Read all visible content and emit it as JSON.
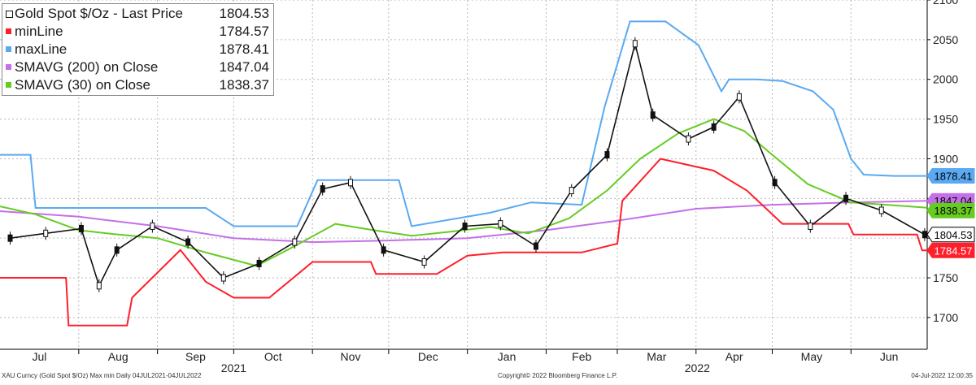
{
  "chart_data": {
    "type": "line",
    "title": "",
    "ylim": [
      1660,
      2100
    ],
    "y_ticks": [
      "1700",
      "1750",
      "1800",
      "1850",
      "1900",
      "1950",
      "2000",
      "2050",
      "2100"
    ],
    "x_months": [
      "Jul",
      "Aug",
      "Sep",
      "Oct",
      "Nov",
      "Dec",
      "Jan",
      "Feb",
      "Mar",
      "Apr",
      "May",
      "Jun"
    ],
    "x_years": [
      "2021",
      "2022"
    ],
    "grid": true,
    "legend_position": "top-left",
    "series": [
      {
        "name": "Gold Spot $/Oz - Last Price",
        "last": "1804.53",
        "color": "#111111",
        "style": "candlestick",
        "x": [
          "2021-07-05",
          "2021-07-19",
          "2021-08-02",
          "2021-08-09",
          "2021-08-16",
          "2021-08-30",
          "2021-09-13",
          "2021-09-27",
          "2021-10-11",
          "2021-10-25",
          "2021-11-05",
          "2021-11-16",
          "2021-11-29",
          "2021-12-15",
          "2021-12-31",
          "2022-01-14",
          "2022-01-28",
          "2022-02-11",
          "2022-02-25",
          "2022-03-08",
          "2022-03-15",
          "2022-03-29",
          "2022-04-08",
          "2022-04-18",
          "2022-05-02",
          "2022-05-16",
          "2022-05-30",
          "2022-06-13",
          "2022-06-30"
        ],
        "y": [
          1800,
          1806,
          1812,
          1740,
          1785,
          1815,
          1795,
          1750,
          1768,
          1795,
          1862,
          1870,
          1785,
          1770,
          1815,
          1818,
          1790,
          1860,
          1905,
          2045,
          1955,
          1925,
          1940,
          1978,
          1870,
          1815,
          1850,
          1835,
          1804.53
        ]
      },
      {
        "name": "minLine",
        "last": "1784.57",
        "color": "#ff1f2a",
        "x": [
          "2021-07-01",
          "2021-07-27",
          "2021-07-28",
          "2021-08-20",
          "2021-08-22",
          "2021-09-10",
          "2021-09-20",
          "2021-10-01",
          "2021-10-15",
          "2021-11-01",
          "2021-11-24",
          "2021-11-26",
          "2021-12-20",
          "2022-01-01",
          "2022-01-15",
          "2022-02-15",
          "2022-03-01",
          "2022-03-03",
          "2022-03-18",
          "2022-04-08",
          "2022-04-21",
          "2022-05-05",
          "2022-05-31",
          "2022-06-02",
          "2022-06-27",
          "2022-06-29",
          "2022-07-01"
        ],
        "y": [
          1750,
          1750,
          1690,
          1690,
          1725,
          1785,
          1745,
          1725,
          1725,
          1770,
          1770,
          1755,
          1755,
          1778,
          1782,
          1782,
          1793,
          1847,
          1900,
          1885,
          1860,
          1818,
          1818,
          1804.5,
          1804.5,
          1784.57,
          1784.57
        ]
      },
      {
        "name": "maxLine",
        "last": "1878.41",
        "color": "#5aa9f2",
        "x": [
          "2021-07-01",
          "2021-07-13",
          "2021-07-15",
          "2021-09-20",
          "2021-10-01",
          "2021-10-26",
          "2021-11-03",
          "2021-12-05",
          "2021-12-10",
          "2022-01-10",
          "2022-01-26",
          "2022-02-15",
          "2022-02-24",
          "2022-03-06",
          "2022-03-20",
          "2022-04-02",
          "2022-04-11",
          "2022-04-14",
          "2022-04-25",
          "2022-05-05",
          "2022-05-17",
          "2022-05-25",
          "2022-06-01",
          "2022-06-06",
          "2022-06-18",
          "2022-06-30",
          "2022-07-01"
        ],
        "y": [
          1905,
          1905,
          1838,
          1838,
          1815,
          1815,
          1873,
          1873,
          1815,
          1832,
          1845,
          1842,
          1965,
          2073,
          2073,
          2043,
          1985,
          2000,
          2000,
          1998,
          1985,
          1962,
          1900,
          1880,
          1878.41,
          1878.41,
          1878.41
        ]
      },
      {
        "name": "SMAVG (200)  on Close",
        "last": "1847.04",
        "color": "#c470e8",
        "x": [
          "2021-07-01",
          "2021-08-01",
          "2021-09-01",
          "2021-10-01",
          "2021-11-01",
          "2021-12-01",
          "2022-01-01",
          "2022-02-01",
          "2022-03-01",
          "2022-04-01",
          "2022-05-01",
          "2022-06-01",
          "2022-07-01"
        ],
        "y": [
          1834,
          1827,
          1815,
          1800,
          1795,
          1797,
          1800,
          1810,
          1822,
          1837,
          1842,
          1845,
          1847.04
        ]
      },
      {
        "name": "SMAVG (30)  on Close",
        "last": "1838.37",
        "color": "#66cc22",
        "x": [
          "2021-07-01",
          "2021-07-15",
          "2021-08-01",
          "2021-08-15",
          "2021-09-01",
          "2021-09-20",
          "2021-10-10",
          "2021-10-25",
          "2021-11-10",
          "2021-11-25",
          "2021-12-10",
          "2021-12-25",
          "2022-01-10",
          "2022-01-25",
          "2022-02-10",
          "2022-02-25",
          "2022-03-10",
          "2022-03-25",
          "2022-04-08",
          "2022-04-20",
          "2022-05-01",
          "2022-05-15",
          "2022-06-01",
          "2022-06-15",
          "2022-07-01"
        ],
        "y": [
          1840,
          1830,
          1810,
          1805,
          1800,
          1782,
          1765,
          1790,
          1818,
          1810,
          1803,
          1808,
          1814,
          1806,
          1825,
          1860,
          1900,
          1932,
          1950,
          1935,
          1905,
          1868,
          1845,
          1842,
          1838.37
        ]
      }
    ]
  },
  "footer": {
    "left": "XAU Curncy (Gold Spot  $/Oz) Max min  Daily 04JUL2021-04JUL2022",
    "center": "Copyright© 2022 Bloomberg Finance L.P.",
    "right": "04-Jul-2022 12:00:35"
  }
}
